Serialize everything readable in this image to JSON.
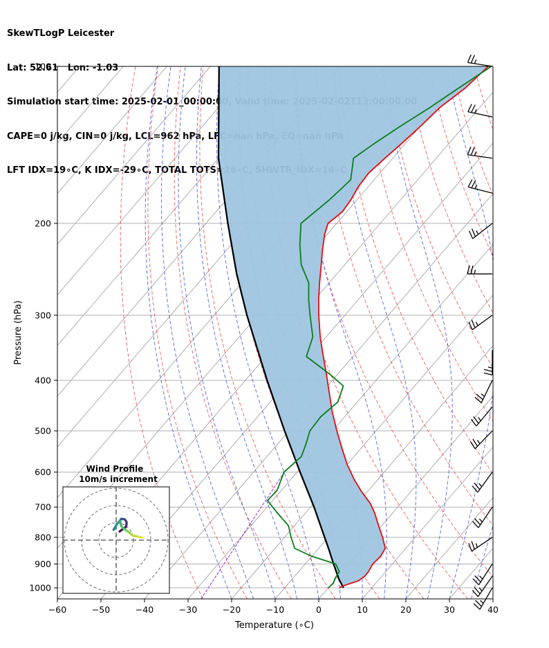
{
  "header": {
    "line1": "SkewTLogP Leicester",
    "line2": "Lat: 52.61   Lon: -1.03",
    "line3": "Simulation start time: 2025-02-01_00:00:00, Valid time: 2025-02-02T13:00:00.00",
    "line4": "CAPE=0 j/kg, CIN=0 j/kg, LCL=962 hPa, LFC=nan hPa, EQ=nan hPa",
    "line5": "LFT IDX=19∘C, K IDX=-29∘C, TOTAL TOTS=26∘C, SHWTR_IDX=14∘C"
  },
  "chart_data": {
    "type": "line",
    "subtype": "skew-t log-p",
    "xlabel": "Temperature (∘C)",
    "ylabel": "Pressure (hPa)",
    "xlim": [
      -60,
      40
    ],
    "ylim": [
      1050,
      100
    ],
    "y_scale": "log",
    "x_ticks": [
      "−60",
      "−50",
      "−40",
      "−30",
      "−20",
      "−10",
      "0",
      "10",
      "20",
      "30",
      "40"
    ],
    "y_ticks": [
      "100",
      "200",
      "300",
      "400",
      "500",
      "600",
      "700",
      "800",
      "900",
      "1000"
    ],
    "grid": true,
    "colors": {
      "temperature": "#e8090f",
      "dewpoint": "#0a7d1b",
      "parcel": "#000000",
      "cape_fill": "#9fc5e0",
      "dry_adiabat": "#ef5b5b",
      "moist_adiabat": "#4a5be8",
      "mixing_ratio": "#8a2be2"
    },
    "temperature": {
      "p": [
        1000,
        990,
        970,
        950,
        930,
        900,
        870,
        840,
        800,
        760,
        720,
        690,
        650,
        620,
        580,
        540,
        500,
        460,
        420,
        390,
        360,
        330,
        300,
        280,
        260,
        240,
        225,
        210,
        200,
        190,
        180,
        170,
        160,
        150,
        140,
        130,
        120,
        110,
        100
      ],
      "t": [
        2.5,
        3.2,
        5.5,
        6.1,
        6.0,
        5.5,
        5.8,
        5.3,
        2.5,
        -0.7,
        -4.0,
        -6.9,
        -11.8,
        -15.4,
        -20.0,
        -24.4,
        -29.0,
        -33.8,
        -38.6,
        -42.5,
        -46.8,
        -51.4,
        -56.0,
        -59.1,
        -62.2,
        -65.4,
        -68.0,
        -70.6,
        -72.0,
        -71.0,
        -71.4,
        -72.3,
        -72.6,
        -71.8,
        -70.8,
        -69.9,
        -69.2,
        -67.2,
        -66.2
      ]
    },
    "dewpoint": {
      "p": [
        1000,
        980,
        960,
        930,
        900,
        870,
        840,
        800,
        760,
        720,
        680,
        650,
        600,
        560,
        530,
        500,
        470,
        440,
        410,
        390,
        360,
        330,
        300,
        280,
        260,
        240,
        220,
        200,
        180,
        165,
        150,
        140,
        130,
        120,
        110,
        100
      ],
      "t": [
        0.0,
        0.3,
        -0.3,
        -0.7,
        -3.0,
        -10.0,
        -15.5,
        -18.5,
        -21.4,
        -26.3,
        -31.2,
        -31.0,
        -33.0,
        -32.1,
        -33.5,
        -35.2,
        -35.5,
        -34.5,
        -36.4,
        -41.6,
        -50.7,
        -53.1,
        -58.0,
        -61.4,
        -64.7,
        -70.0,
        -74.2,
        -78.2,
        -76.3,
        -75.4,
        -79.0,
        -77.0,
        -74.5,
        -71.5,
        -68.7,
        -65.5
      ]
    },
    "parcel": {
      "p": [
        1000,
        962,
        900,
        850,
        800,
        700,
        600,
        500,
        400,
        300,
        250,
        200,
        150,
        100
      ],
      "t": [
        3.5,
        0.7,
        -3.5,
        -7.0,
        -10.8,
        -19.2,
        -29.3,
        -41.0,
        -55.0,
        -72.5,
        -83.0,
        -95.0,
        -110.0,
        -128.0
      ]
    },
    "wind_barbs": [
      {
        "p": 100,
        "speed_kt": 25,
        "dir_deg": 279
      },
      {
        "p": 125,
        "speed_kt": 25,
        "dir_deg": 282
      },
      {
        "p": 150,
        "speed_kt": 25,
        "dir_deg": 278
      },
      {
        "p": 175,
        "speed_kt": 25,
        "dir_deg": 284
      },
      {
        "p": 200,
        "speed_kt": 25,
        "dir_deg": 232
      },
      {
        "p": 250,
        "speed_kt": 25,
        "dir_deg": 270
      },
      {
        "p": 300,
        "speed_kt": 25,
        "dir_deg": 234
      },
      {
        "p": 350,
        "speed_kt": 25,
        "dir_deg": 180
      },
      {
        "p": 400,
        "speed_kt": 25,
        "dir_deg": 206
      },
      {
        "p": 450,
        "speed_kt": 25,
        "dir_deg": 220
      },
      {
        "p": 500,
        "speed_kt": 25,
        "dir_deg": 224
      },
      {
        "p": 600,
        "speed_kt": 25,
        "dir_deg": 216
      },
      {
        "p": 700,
        "speed_kt": 25,
        "dir_deg": 214
      },
      {
        "p": 800,
        "speed_kt": 25,
        "dir_deg": 236
      },
      {
        "p": 900,
        "speed_kt": 25,
        "dir_deg": 213
      },
      {
        "p": 950,
        "speed_kt": 25,
        "dir_deg": 215
      },
      {
        "p": 1000,
        "speed_kt": 25,
        "dir_deg": 210
      }
    ],
    "hodograph": {
      "title1": "Wind Profile",
      "title2": "10m/s increment",
      "rings_ms": [
        10,
        20,
        30
      ],
      "u": [
        2.0,
        4.0,
        5.5,
        6.0,
        6.0,
        5.0,
        3.0,
        2.0,
        0.5,
        -0.5,
        -1.5,
        -0.8,
        0.3,
        1.5,
        2.3,
        2.5,
        3.0,
        4.5,
        6.0,
        7.5,
        8.5,
        10.0,
        13.0,
        15.0
      ],
      "v": [
        5.0,
        6.5,
        7.5,
        9.0,
        10.5,
        12.0,
        12.3,
        11.0,
        9.5,
        7.5,
        6.0,
        7.0,
        9.0,
        10.5,
        11.0,
        10.0,
        8.0,
        6.5,
        5.5,
        4.5,
        3.5,
        2.5,
        2.0,
        1.5
      ]
    }
  }
}
